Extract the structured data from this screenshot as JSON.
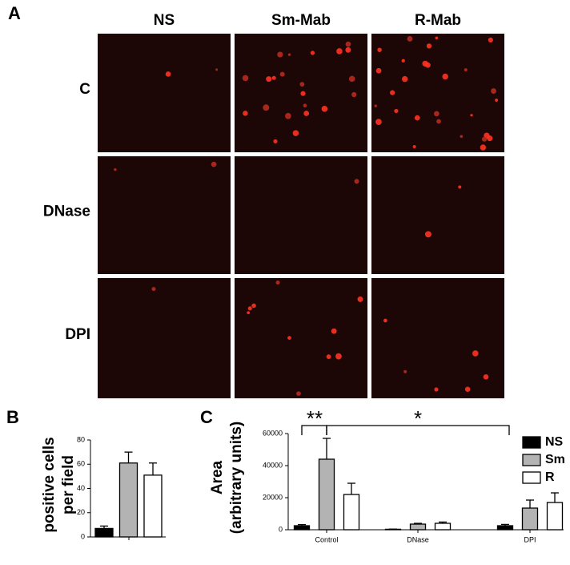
{
  "panel_labels": [
    "A",
    "B",
    "C"
  ],
  "panel_a": {
    "columns": [
      "NS",
      "Sm-Mab",
      "R-Mab"
    ],
    "rows": [
      "C",
      "DNase",
      "DPI"
    ]
  },
  "chart_data": [
    {
      "type": "bar",
      "ylabel": [
        "positive cells",
        "per field"
      ],
      "categories": [
        null,
        null,
        null
      ],
      "values": [
        7,
        61,
        51
      ],
      "errors": [
        2,
        9,
        10
      ],
      "colors": [
        "#000000",
        "#b3b3b3",
        "#ffffff"
      ],
      "ylim": [
        0,
        80
      ],
      "yticks": [
        0,
        20,
        40,
        60,
        80
      ]
    },
    {
      "type": "grouped_bar",
      "ylabel": [
        "Area",
        "(arbitrary units)"
      ],
      "categories": [
        "Control",
        "DNase",
        "DPI"
      ],
      "series": [
        {
          "name": "NS",
          "color": "#000000",
          "values": [
            2500,
            300,
            2500
          ],
          "errors": [
            700,
            100,
            800
          ]
        },
        {
          "name": "Sm",
          "color": "#b3b3b3",
          "values": [
            44000,
            3500,
            13500
          ],
          "errors": [
            13000,
            500,
            5000
          ]
        },
        {
          "name": "R",
          "color": "#ffffff",
          "values": [
            22000,
            4000,
            17000
          ],
          "errors": [
            7000,
            800,
            6000
          ]
        }
      ],
      "ylim": [
        0,
        60000
      ],
      "yticks": [
        0,
        20000,
        40000,
        60000
      ],
      "annotations": [
        "**",
        "*"
      ],
      "legend": "right"
    }
  ]
}
